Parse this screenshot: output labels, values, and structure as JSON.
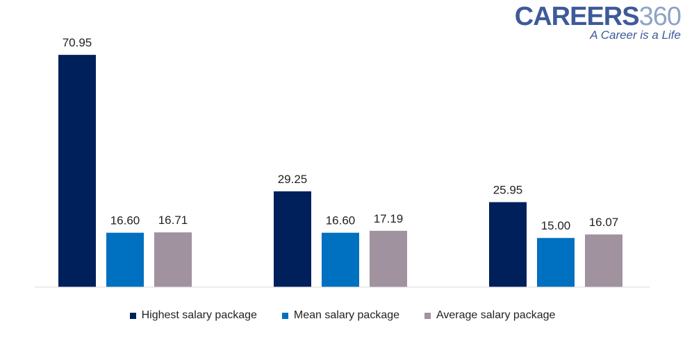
{
  "logo": {
    "brand": "CAREERS",
    "number": "360",
    "tagline": "A Career is a Life"
  },
  "chart_data": {
    "type": "bar",
    "title": "",
    "xlabel": "",
    "ylabel": "",
    "categories": [
      "",
      "",
      ""
    ],
    "ylim": [
      0,
      75
    ],
    "grid": false,
    "legend_position": "bottom",
    "series": [
      {
        "name": "Highest salary package",
        "color": "#00205b",
        "values": [
          70.95,
          29.25,
          25.95
        ],
        "labels": [
          "70.95",
          "29.25",
          "25.95"
        ]
      },
      {
        "name": "Mean salary package",
        "color": "#0070c0",
        "values": [
          16.6,
          16.6,
          15.0
        ],
        "labels": [
          "16.60",
          "16.60",
          "15.00"
        ]
      },
      {
        "name": "Average salary package",
        "color": "#a0929f",
        "values": [
          16.71,
          17.19,
          16.07
        ],
        "labels": [
          "16.71",
          "17.19",
          "16.07"
        ]
      }
    ]
  }
}
